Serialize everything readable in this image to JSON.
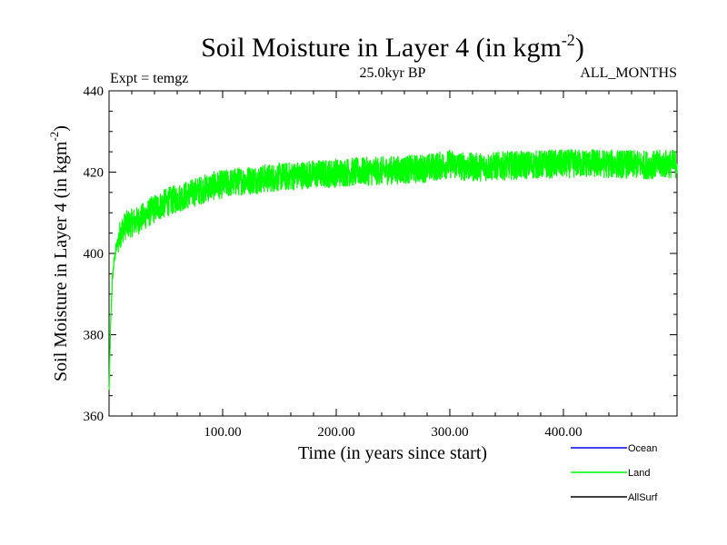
{
  "chart_data": {
    "type": "line",
    "title": "Soil Moisture in Layer 4 (in kgm",
    "title_superscript": "-2",
    "title_suffix": ")",
    "subtitle_left": "Expt = temgz",
    "subtitle_center": "25.0kyr BP",
    "subtitle_right": "ALL_MONTHS",
    "xlabel": "Time (in years since start)",
    "ylabel": "Soil Moisture in Layer 4 (in kgm",
    "ylabel_superscript": "-2",
    "ylabel_suffix": ")",
    "xlim": [
      0,
      500
    ],
    "ylim": [
      360,
      440
    ],
    "x_ticks": [
      {
        "value": 100,
        "label": "100.00"
      },
      {
        "value": 200,
        "label": "200.00"
      },
      {
        "value": 300,
        "label": "300.00"
      },
      {
        "value": 400,
        "label": "400.00"
      }
    ],
    "y_ticks": [
      {
        "value": 360,
        "label": "360"
      },
      {
        "value": 380,
        "label": "380"
      },
      {
        "value": 400,
        "label": "400"
      },
      {
        "value": 420,
        "label": "420"
      },
      {
        "value": 440,
        "label": "440"
      }
    ],
    "legend": [
      {
        "name": "Ocean",
        "color": "#0000ff"
      },
      {
        "name": "Land",
        "color": "#00ff00"
      },
      {
        "name": "AllSurf",
        "color": "#000000"
      }
    ],
    "series": [
      {
        "name": "Land",
        "color": "#00ff00",
        "x": [
          0,
          1,
          2,
          3,
          4,
          5,
          6,
          8,
          10,
          12,
          15,
          20,
          25,
          30,
          40,
          50,
          60,
          70,
          80,
          90,
          100,
          110,
          120,
          130,
          140,
          150,
          160,
          170,
          180,
          190,
          200,
          210,
          220,
          230,
          240,
          250,
          260,
          270,
          280,
          290,
          300,
          310,
          320,
          330,
          340,
          350,
          360,
          370,
          380,
          390,
          400,
          410,
          420,
          430,
          440,
          450,
          460,
          470,
          480,
          490,
          500
        ],
        "values": [
          366,
          378,
          388,
          394,
          397,
          399,
          401,
          403,
          405,
          406,
          407,
          407.5,
          408,
          409,
          411,
          412.5,
          413.5,
          414.5,
          415.5,
          416.5,
          417,
          417.5,
          418,
          418.2,
          418.5,
          418.8,
          419,
          419.3,
          419.5,
          419.6,
          419.8,
          420,
          420.1,
          420.2,
          420.3,
          420.5,
          420.6,
          420.8,
          421,
          421.5,
          422,
          421.5,
          421.2,
          421.3,
          421.5,
          421.6,
          421.7,
          421.8,
          421.9,
          422,
          422,
          422.1,
          422.2,
          422.1,
          422,
          422,
          421.9,
          421.8,
          421.8,
          422,
          422
        ],
        "noise_amplitude": 3.5
      }
    ]
  }
}
